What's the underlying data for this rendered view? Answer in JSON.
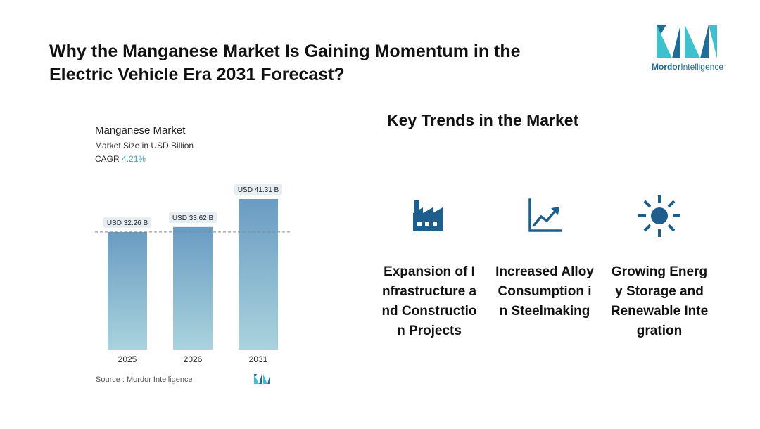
{
  "header": {
    "title_line1": "Why the Manganese Market Is Gaining Momentum in the",
    "title_line2": "Electric Vehicle Era 2031 Forecast?"
  },
  "logo": {
    "brand_part1": "Mordor",
    "brand_part2": "Intelligence",
    "colors": {
      "teal": "#3ec1cf",
      "blue": "#1f6c97"
    }
  },
  "chart_data": {
    "type": "bar",
    "title": "Manganese Market",
    "subtitle": "Market Size in USD Billion",
    "cagr_label": "CAGR",
    "cagr_value": "4.21%",
    "categories": [
      "2025",
      "2026",
      "2031"
    ],
    "values": [
      32.26,
      33.62,
      41.31
    ],
    "data_labels": [
      "USD 32.26 B",
      "USD 33.62 B",
      "USD 41.31 B"
    ],
    "ylim": [
      0,
      41.31
    ],
    "reference_line_value": 32.26,
    "source": "Source : Mordor Intelligence",
    "bar_color_top": "#6a9cc2",
    "bar_color_bottom": "#a9d3dd"
  },
  "trends": {
    "title": "Key Trends in the Market",
    "items": [
      {
        "label": "Expansion of Infrastructure and Construction Projects",
        "icon": "factory-icon"
      },
      {
        "label": "Increased Alloy Consumption in Steelmaking",
        "icon": "line-chart-growth-icon"
      },
      {
        "label": "Growing Energy Storage and Renewable Integration",
        "icon": "sun-icon"
      }
    ],
    "icon_color": "#1f5e8c"
  }
}
